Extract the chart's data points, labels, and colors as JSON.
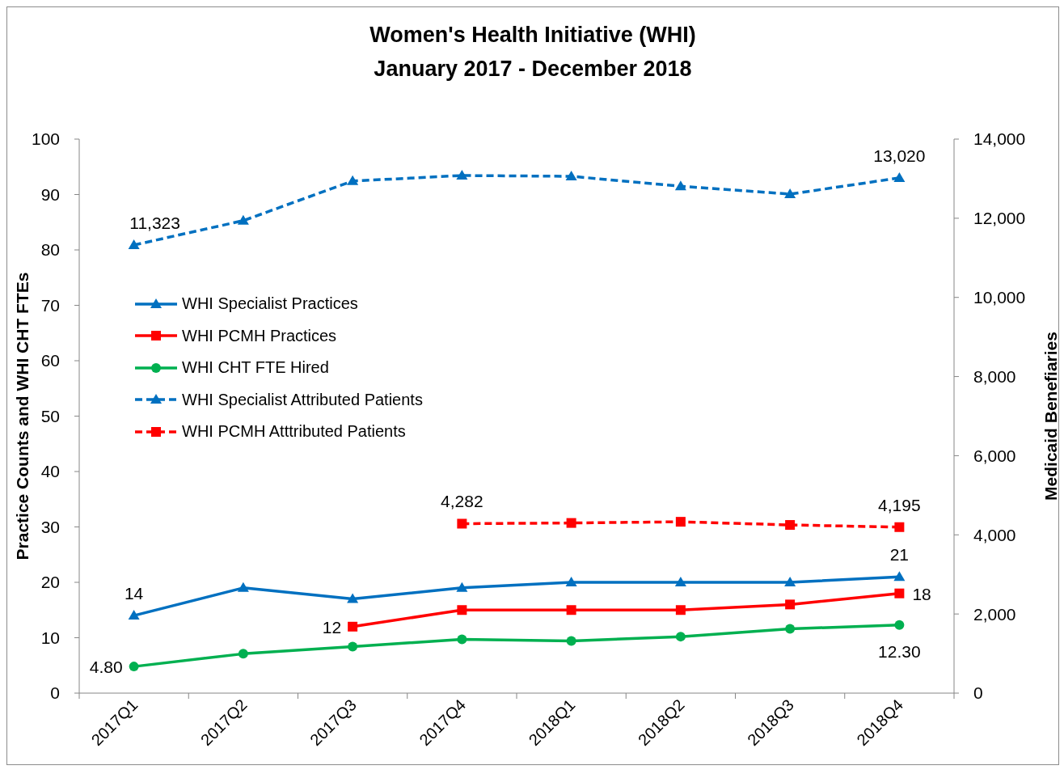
{
  "chart_data": {
    "type": "line",
    "title": "Women's Health Initiative (WHI)",
    "subtitle": "January 2017 - December 2018",
    "ylabel": "Practice Counts and WHI CHT FTEs",
    "y2label": "Medicaid Benefiaries",
    "categories": [
      "2017Q1",
      "2017Q2",
      "2017Q3",
      "2017Q4",
      "2018Q1",
      "2018Q2",
      "2018Q3",
      "2018Q4"
    ],
    "ylim": [
      0,
      100
    ],
    "yticks": [
      0,
      10,
      20,
      30,
      40,
      50,
      60,
      70,
      80,
      90,
      100
    ],
    "y2lim": [
      0,
      14000
    ],
    "y2ticks": [
      {
        "value": 0,
        "label": "0"
      },
      {
        "value": 2000,
        "label": "2,000"
      },
      {
        "value": 4000,
        "label": "4,000"
      },
      {
        "value": 6000,
        "label": "6,000"
      },
      {
        "value": 8000,
        "label": "8,000"
      },
      {
        "value": 10000,
        "label": "10,000"
      },
      {
        "value": 12000,
        "label": "12,000"
      },
      {
        "value": 14000,
        "label": "14,000"
      }
    ],
    "legend": "left",
    "series": [
      {
        "name": "WHI Specialist Practices",
        "color": "#0070c0",
        "marker": "triangle",
        "line_style": "solid",
        "values": [
          14,
          19,
          17,
          19,
          20,
          20,
          20,
          21
        ],
        "value_labels": [
          "14",
          null,
          null,
          null,
          null,
          null,
          null,
          "21"
        ]
      },
      {
        "name": "WHI PCMH Practices",
        "color": "#ff0000",
        "marker": "square",
        "line_style": "solid",
        "values": [
          null,
          null,
          12,
          15,
          15,
          15,
          16,
          18
        ],
        "value_labels": [
          null,
          null,
          "12",
          null,
          null,
          null,
          null,
          "18"
        ]
      },
      {
        "name": "WHI CHT FTE Hired",
        "color": "#00b050",
        "marker": "circle",
        "line_style": "solid",
        "values": [
          4.8,
          7.1,
          8.4,
          9.7,
          9.4,
          10.2,
          11.6,
          12.3
        ],
        "value_labels": [
          "4.80",
          null,
          null,
          null,
          null,
          null,
          null,
          "12.30"
        ]
      },
      {
        "name": "WHI Specialist Attributed Patients",
        "color": "#0070c0",
        "marker": "triangle",
        "line_style": "dashed",
        "axis": "y2",
        "values": [
          11323,
          11940,
          12940,
          13080,
          13060,
          12810,
          12610,
          13020
        ],
        "value_labels": [
          "11,323",
          null,
          null,
          null,
          null,
          null,
          null,
          "13,020"
        ]
      },
      {
        "name": "WHI PCMH Atttributed Patients",
        "color": "#ff0000",
        "marker": "square",
        "line_style": "dashed",
        "axis": "y2",
        "values": [
          null,
          null,
          null,
          4282,
          4300,
          4330,
          4250,
          4195
        ],
        "value_labels": [
          null,
          null,
          null,
          "4,282",
          null,
          null,
          null,
          "4,195"
        ]
      }
    ]
  }
}
